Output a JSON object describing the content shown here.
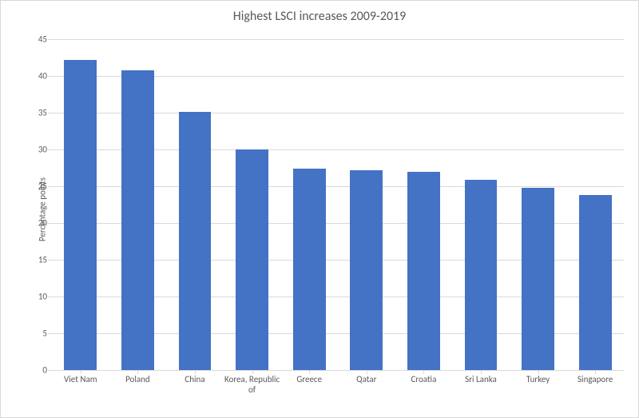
{
  "chart": {
    "type": "bar",
    "title": "Highest LSCI increases 2009-2019",
    "title_fontsize": 16,
    "title_color": "#595959",
    "ylabel": "Percentage points",
    "ylabel_fontsize": 11,
    "categories": [
      "Viet Nam",
      "Poland",
      "China",
      "Korea, Republic of",
      "Greece",
      "Qatar",
      "Croatia",
      "Sri Lanka",
      "Turkey",
      "Singapore"
    ],
    "values": [
      42.2,
      40.8,
      35.1,
      30.0,
      27.4,
      27.2,
      27.0,
      25.9,
      24.8,
      23.8
    ],
    "bar_color": "#4472c4",
    "bar_width": 0.57,
    "ylim": [
      0,
      45
    ],
    "ytick_step": 5,
    "grid_color": "#d9d9d9",
    "tick_fontsize": 11,
    "tick_color": "#595959",
    "background_color": "#ffffff"
  }
}
